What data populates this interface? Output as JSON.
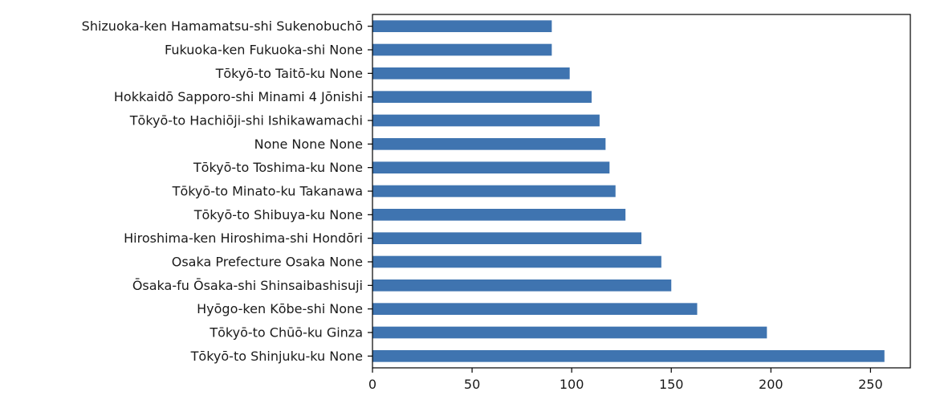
{
  "chart_data": {
    "type": "bar",
    "orientation": "horizontal",
    "title": "",
    "xlabel": "",
    "ylabel": "",
    "xlim": [
      0,
      270
    ],
    "xticks": [
      0,
      50,
      100,
      150,
      200,
      250
    ],
    "grid": false,
    "legend": "none",
    "bar_color": "#3f74b0",
    "categories": [
      "Shizuoka-ken Hamamatsu-shi Sukenobuchō",
      "Fukuoka-ken Fukuoka-shi None",
      "Tōkyō-to Taitō-ku None",
      "Hokkaidō Sapporo-shi Minami 4 Jōnishi",
      "Tōkyō-to Hachiōji-shi Ishikawamachi",
      "None None None",
      "Tōkyō-to Toshima-ku None",
      "Tōkyō-to Minato-ku Takanawa",
      "Tōkyō-to Shibuya-ku None",
      "Hiroshima-ken Hiroshima-shi Hondōri",
      "Osaka Prefecture Osaka None",
      "Ōsaka-fu Ōsaka-shi Shinsaibashisuji",
      "Hyōgo-ken Kōbe-shi None",
      "Tōkyō-to Chūō-ku Ginza",
      "Tōkyō-to Shinjuku-ku None"
    ],
    "values": [
      90,
      90,
      99,
      110,
      114,
      117,
      119,
      122,
      127,
      135,
      145,
      150,
      163,
      198,
      257
    ]
  }
}
